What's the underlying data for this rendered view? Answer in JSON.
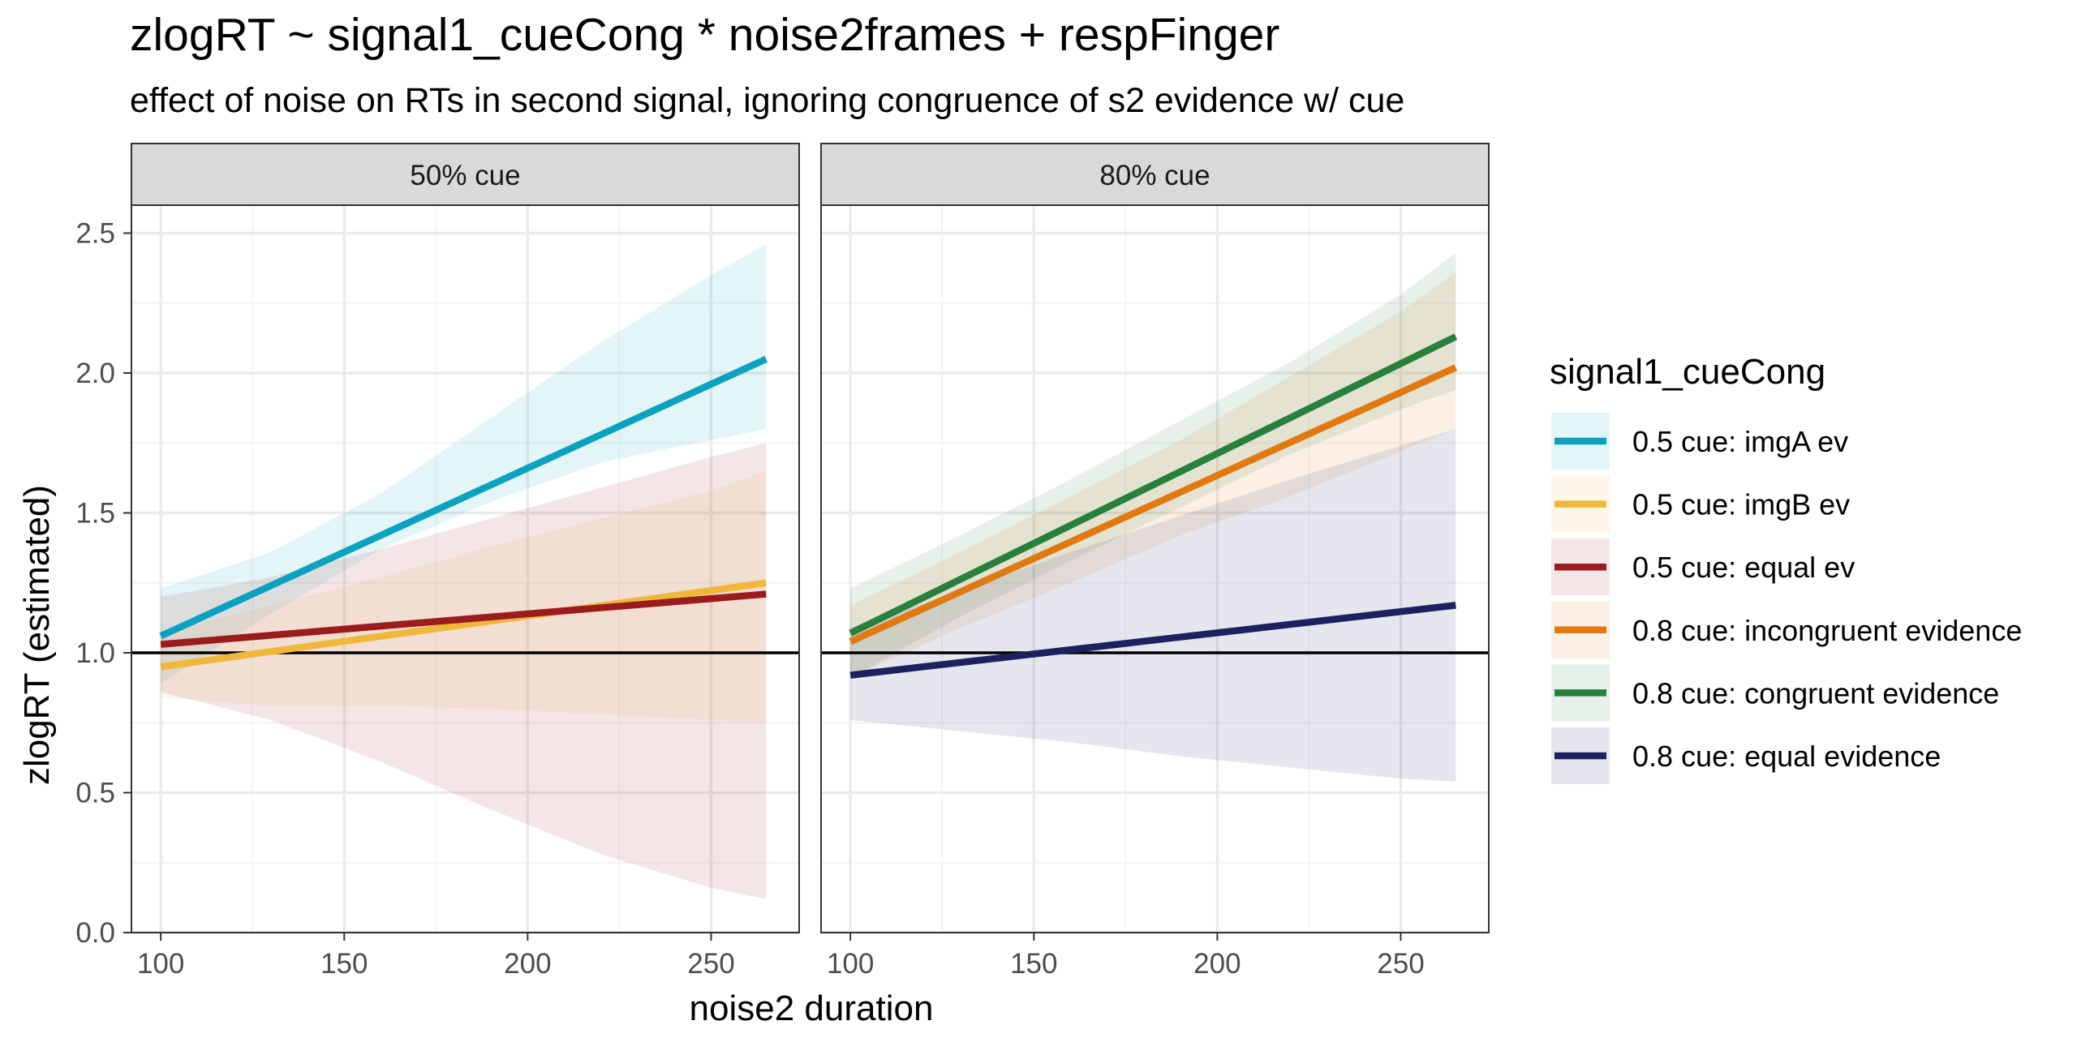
{
  "chart_data": {
    "type": "line",
    "title": "zlogRT ~ signal1_cueCong * noise2frames + respFinger",
    "subtitle": "effect of noise on RTs in second signal, ignoring congruence of s2 evidence w/ cue",
    "xlabel": "noise2 duration",
    "ylabel": "zlogRT (estimated)",
    "xlim": [
      92,
      274
    ],
    "ylim": [
      0,
      2.6
    ],
    "xticks": [
      100,
      150,
      200,
      250
    ],
    "yticks": [
      0.0,
      0.5,
      1.0,
      1.5,
      2.0,
      2.5
    ],
    "ytick_labels": [
      "0.0",
      "0.5",
      "1.0",
      "1.5",
      "2.0",
      "2.5"
    ],
    "reference_line_y": 1.0,
    "grid": true,
    "legend": {
      "title": "signal1_cueCong",
      "placement": "right"
    },
    "panels": [
      {
        "label": "50% cue",
        "series": [
          {
            "name": "0.5 cue: imgA ev",
            "color": "#0aa2bf",
            "x": [
              100,
              265
            ],
            "y": [
              1.06,
              2.05
            ],
            "band": {
              "x": [
                100,
                130,
                160,
                190,
                220,
                250,
                265
              ],
              "lower": [
                0.89,
                1.14,
                1.37,
                1.54,
                1.68,
                1.76,
                1.8
              ],
              "upper": [
                1.23,
                1.36,
                1.57,
                1.84,
                2.11,
                2.35,
                2.46
              ]
            }
          },
          {
            "name": "0.5 cue: imgB ev",
            "color": "#f0b83a",
            "x": [
              100,
              265
            ],
            "y": [
              0.95,
              1.25
            ],
            "band": {
              "x": [
                100,
                130,
                160,
                190,
                220,
                250,
                265
              ],
              "lower": [
                0.84,
                0.81,
                0.81,
                0.8,
                0.78,
                0.76,
                0.75
              ],
              "upper": [
                1.07,
                1.17,
                1.27,
                1.38,
                1.48,
                1.58,
                1.65
              ]
            }
          },
          {
            "name": "0.5 cue: equal ev",
            "color": "#9a1c1c",
            "x": [
              100,
              265
            ],
            "y": [
              1.03,
              1.21
            ],
            "band": {
              "x": [
                100,
                130,
                160,
                190,
                220,
                250,
                265
              ],
              "lower": [
                0.86,
                0.76,
                0.61,
                0.44,
                0.28,
                0.16,
                0.12
              ],
              "upper": [
                1.2,
                1.27,
                1.37,
                1.48,
                1.59,
                1.7,
                1.75
              ]
            }
          }
        ]
      },
      {
        "label": "80% cue",
        "series": [
          {
            "name": "0.8 cue: incongruent evidence",
            "color": "#e07a10",
            "x": [
              100,
              265
            ],
            "y": [
              1.04,
              2.02
            ],
            "band": {
              "x": [
                100,
                130,
                160,
                190,
                220,
                250,
                265
              ],
              "lower": [
                0.91,
                1.09,
                1.25,
                1.42,
                1.56,
                1.72,
                1.8
              ],
              "upper": [
                1.17,
                1.36,
                1.56,
                1.76,
                1.99,
                2.22,
                2.36
              ]
            }
          },
          {
            "name": "0.8 cue: congruent evidence",
            "color": "#27803c",
            "x": [
              100,
              265
            ],
            "y": [
              1.07,
              2.13
            ],
            "band": {
              "x": [
                100,
                130,
                160,
                190,
                220,
                250,
                265
              ],
              "lower": [
                0.91,
                1.13,
                1.33,
                1.52,
                1.71,
                1.87,
                1.94
              ],
              "upper": [
                1.23,
                1.42,
                1.62,
                1.83,
                2.04,
                2.28,
                2.43
              ]
            }
          },
          {
            "name": "0.8 cue: equal evidence",
            "color": "#1c2160",
            "x": [
              100,
              265
            ],
            "y": [
              0.92,
              1.17
            ],
            "band": {
              "x": [
                100,
                130,
                160,
                190,
                220,
                250,
                265
              ],
              "lower": [
                0.76,
                0.72,
                0.68,
                0.63,
                0.59,
                0.55,
                0.54
              ],
              "upper": [
                1.09,
                1.22,
                1.36,
                1.49,
                1.62,
                1.74,
                1.8
              ]
            }
          }
        ]
      }
    ]
  },
  "colors": {
    "strip_bg": "#d9d9d9",
    "grid_major": "#ebebeb",
    "grid_minor": "#f4f4f4",
    "axis_text": "#4d4d4d"
  }
}
